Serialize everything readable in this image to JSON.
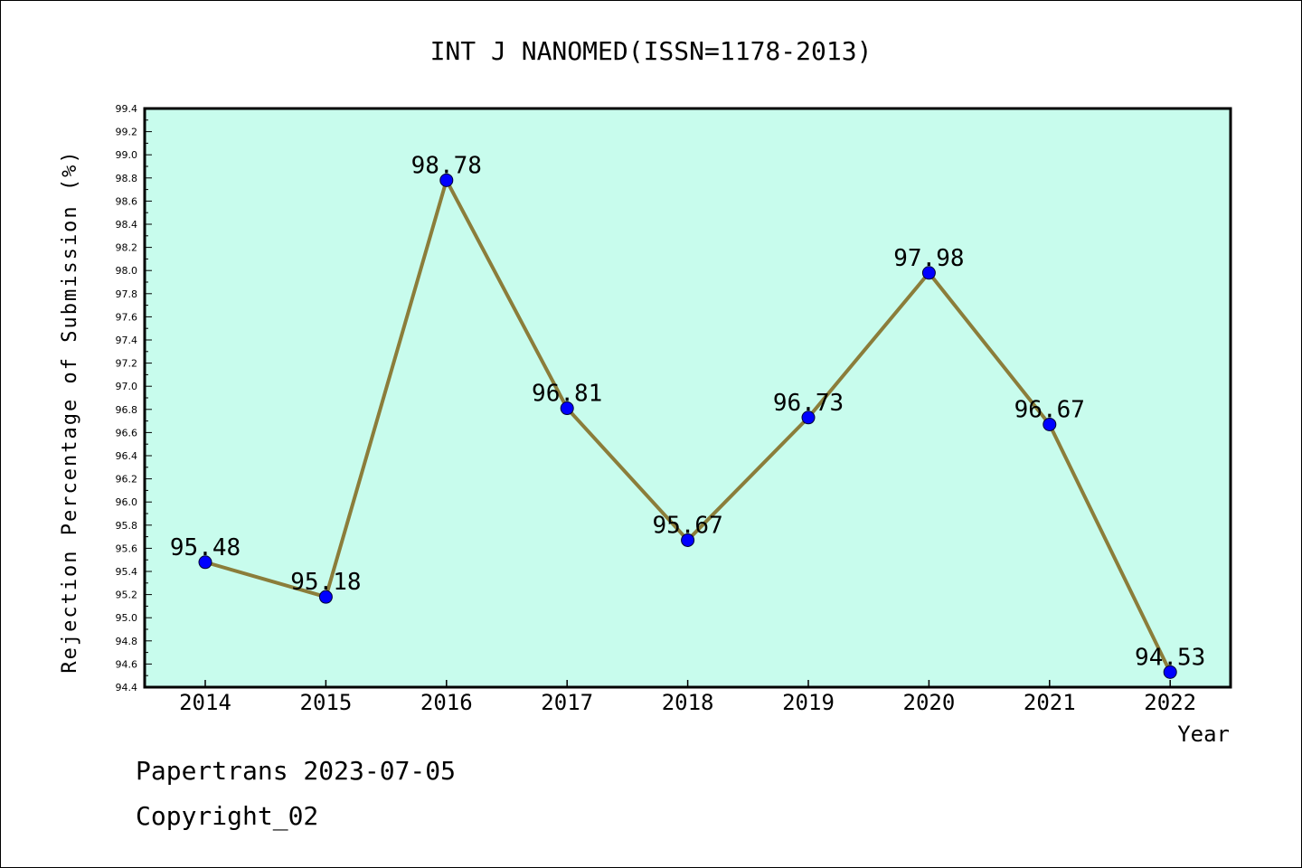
{
  "chart_data": {
    "type": "line",
    "title": "INT J NANOMED(ISSN=1178-2013)",
    "xlabel": "Year",
    "ylabel": "Rejection Percentage of Submission (%)",
    "categories": [
      "2014",
      "2015",
      "2016",
      "2017",
      "2018",
      "2019",
      "2020",
      "2021",
      "2022"
    ],
    "series": [
      {
        "values": [
          95.48,
          95.18,
          98.78,
          96.81,
          95.67,
          96.73,
          97.98,
          96.67,
          94.53
        ],
        "labels": [
          "95.48",
          "95.18",
          "98.78",
          "96.81",
          "95.67",
          "96.73",
          "97.98",
          "96.67",
          "94.53"
        ]
      }
    ],
    "ylim": [
      94.4,
      99.4
    ],
    "yticks": [
      "94.4",
      "94.6",
      "94.8",
      "95.0",
      "95.2",
      "95.4",
      "95.6",
      "95.8",
      "96.0",
      "96.2",
      "96.4",
      "96.6",
      "96.8",
      "97.0",
      "97.2",
      "97.4",
      "97.6",
      "97.8",
      "98.0",
      "98.2",
      "98.4",
      "98.6",
      "98.8",
      "99.0",
      "99.2",
      "99.4"
    ],
    "grid": false,
    "colors": {
      "plot_background": "#c8fced",
      "line": "#8b7d3a",
      "marker": "#0000ff"
    }
  },
  "footer": {
    "line1": "Papertrans 2023-07-05",
    "line2": "Copyright_02"
  }
}
